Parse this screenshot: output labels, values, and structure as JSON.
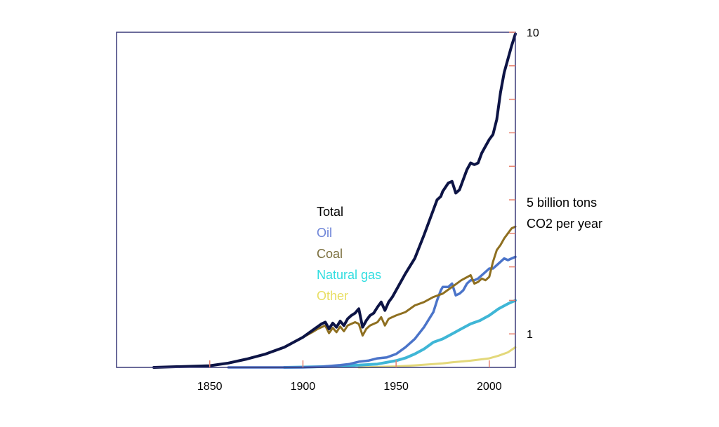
{
  "chart_data": {
    "type": "line",
    "title": "",
    "xlabel": "",
    "ylabel": "",
    "ylabel_lines": [
      "5 billion tons",
      "CO2 per year"
    ],
    "xlim": [
      1800,
      2014
    ],
    "ylim": [
      0,
      10
    ],
    "x_ticks": [
      1850,
      1900,
      1950,
      2000
    ],
    "y_tick_labels": [
      {
        "value": 10,
        "label": "10"
      },
      {
        "value": 1,
        "label": "1"
      }
    ],
    "y_minor_ticks": [
      1,
      2,
      3,
      4,
      5,
      6,
      7,
      8,
      9,
      10
    ],
    "grid": false,
    "legend_position": "center",
    "colors": {
      "frame": "#3a3a78",
      "tick": "#e8826f"
    },
    "series": [
      {
        "name": "Total",
        "color": "#0d1445",
        "legend_color": "#000000",
        "x": [
          1820,
          1850,
          1860,
          1870,
          1880,
          1890,
          1900,
          1905,
          1910,
          1912,
          1914,
          1916,
          1918,
          1920,
          1922,
          1924,
          1926,
          1928,
          1930,
          1932,
          1934,
          1936,
          1938,
          1940,
          1942,
          1944,
          1946,
          1948,
          1950,
          1955,
          1960,
          1965,
          1970,
          1972,
          1974,
          1975,
          1978,
          1980,
          1982,
          1984,
          1986,
          1988,
          1990,
          1992,
          1994,
          1996,
          1998,
          2000,
          2002,
          2004,
          2006,
          2008,
          2010,
          2012,
          2014
        ],
        "y": [
          0,
          0.05,
          0.13,
          0.25,
          0.4,
          0.6,
          0.9,
          1.1,
          1.3,
          1.35,
          1.15,
          1.32,
          1.2,
          1.38,
          1.25,
          1.45,
          1.55,
          1.62,
          1.75,
          1.2,
          1.4,
          1.55,
          1.62,
          1.8,
          1.95,
          1.7,
          1.95,
          2.1,
          2.3,
          2.8,
          3.25,
          3.95,
          4.7,
          5,
          5.1,
          5.25,
          5.5,
          5.55,
          5.2,
          5.3,
          5.6,
          5.9,
          6.1,
          6.05,
          6.1,
          6.4,
          6.6,
          6.8,
          6.95,
          7.4,
          8.2,
          8.8,
          9.2,
          9.6,
          9.95
        ]
      },
      {
        "name": "Oil",
        "color": "#4b74c9",
        "legend_color": "#6d84d8",
        "x": [
          1860,
          1900,
          1910,
          1920,
          1925,
          1930,
          1935,
          1940,
          1945,
          1950,
          1955,
          1960,
          1965,
          1970,
          1972,
          1974,
          1975,
          1978,
          1980,
          1982,
          1984,
          1986,
          1988,
          1990,
          1992,
          1994,
          1996,
          1998,
          2000,
          2002,
          2004,
          2006,
          2008,
          2010,
          2012,
          2014
        ],
        "y": [
          0,
          0,
          0.02,
          0.07,
          0.1,
          0.17,
          0.2,
          0.27,
          0.3,
          0.4,
          0.6,
          0.85,
          1.2,
          1.65,
          2,
          2.3,
          2.4,
          2.4,
          2.5,
          2.15,
          2.2,
          2.3,
          2.5,
          2.6,
          2.6,
          2.65,
          2.75,
          2.85,
          2.95,
          2.95,
          3.05,
          3.15,
          3.25,
          3.2,
          3.25,
          3.3
        ]
      },
      {
        "name": "Coal",
        "color": "#8e6f20",
        "legend_color": "#7a6e3c",
        "x": [
          1820,
          1850,
          1860,
          1870,
          1880,
          1890,
          1900,
          1905,
          1908,
          1910,
          1912,
          1914,
          1916,
          1918,
          1920,
          1922,
          1924,
          1926,
          1928,
          1930,
          1932,
          1934,
          1936,
          1938,
          1940,
          1942,
          1944,
          1946,
          1948,
          1950,
          1955,
          1960,
          1965,
          1970,
          1975,
          1980,
          1985,
          1990,
          1992,
          1994,
          1996,
          1998,
          2000,
          2002,
          2004,
          2006,
          2008,
          2010,
          2012,
          2014
        ],
        "y": [
          0,
          0.05,
          0.13,
          0.25,
          0.4,
          0.6,
          0.9,
          1.05,
          1.15,
          1.2,
          1.25,
          1.02,
          1.18,
          1.05,
          1.22,
          1.08,
          1.25,
          1.3,
          1.35,
          1.3,
          0.95,
          1.15,
          1.25,
          1.3,
          1.35,
          1.5,
          1.25,
          1.45,
          1.5,
          1.55,
          1.65,
          1.85,
          1.95,
          2.1,
          2.2,
          2.4,
          2.6,
          2.75,
          2.5,
          2.55,
          2.65,
          2.6,
          2.7,
          3.15,
          3.5,
          3.65,
          3.85,
          4,
          4.15,
          4.2
        ]
      },
      {
        "name": "Natural gas",
        "color": "#3fb6d6",
        "legend_color": "#2fdde0",
        "x": [
          1890,
          1910,
          1920,
          1930,
          1940,
          1950,
          1955,
          1960,
          1965,
          1970,
          1975,
          1980,
          1985,
          1990,
          1995,
          2000,
          2005,
          2010,
          2014
        ],
        "y": [
          0,
          0.02,
          0.04,
          0.07,
          0.1,
          0.2,
          0.28,
          0.4,
          0.55,
          0.75,
          0.85,
          1,
          1.15,
          1.3,
          1.4,
          1.55,
          1.75,
          1.9,
          2
        ]
      },
      {
        "name": "Other",
        "color": "#e3d87a",
        "legend_color": "#e8de62",
        "x": [
          1930,
          1950,
          1960,
          1970,
          1975,
          1980,
          1990,
          2000,
          2005,
          2010,
          2014
        ],
        "y": [
          0,
          0.03,
          0.06,
          0.1,
          0.12,
          0.15,
          0.2,
          0.27,
          0.35,
          0.45,
          0.6
        ]
      }
    ]
  }
}
